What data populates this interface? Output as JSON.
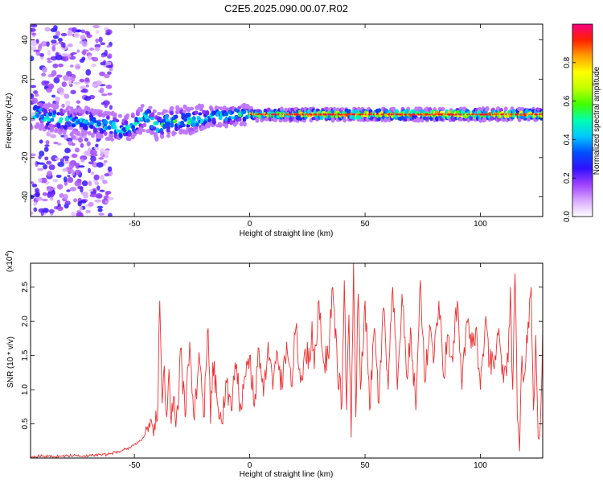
{
  "title": "C2E5.2025.090.00.07.R02",
  "chart_data": [
    {
      "type": "heatmap",
      "xlabel": "Height of straight line (km)",
      "ylabel": "Frequency (Hz)",
      "xlim": [
        -95,
        127
      ],
      "ylim": [
        -50,
        48
      ],
      "xticks": [
        -50,
        0,
        50,
        100
      ],
      "yticks": [
        -40,
        -20,
        0,
        20,
        40
      ],
      "colorbar": {
        "label": "Normalized spectral amplitude",
        "range": [
          0,
          1
        ],
        "ticks": [
          "0.0",
          "0.2",
          "0.4",
          "0.6",
          "0.8"
        ],
        "tick_values": [
          0.0,
          0.2,
          0.4,
          0.6,
          0.8
        ],
        "colors": [
          "#ffffff",
          "#d8a8ff",
          "#a040ff",
          "#3010ff",
          "#0050ff",
          "#00c8ff",
          "#00ffb0",
          "#40ff00",
          "#c0ff00",
          "#ffff00",
          "#ffa000",
          "#ff2000",
          "#ff0080"
        ]
      },
      "ridge": [
        {
          "x": -90,
          "y": 0
        },
        {
          "x": -85,
          "y": 0
        },
        {
          "x": -80,
          "y": -1
        },
        {
          "x": -75,
          "y": -2
        },
        {
          "x": -70,
          "y": -1
        },
        {
          "x": -65,
          "y": -3
        },
        {
          "x": -60,
          "y": -4
        },
        {
          "x": -55,
          "y": -6
        },
        {
          "x": -50,
          "y": -3
        },
        {
          "x": -45,
          "y": 1
        },
        {
          "x": -40,
          "y": -4
        },
        {
          "x": -35,
          "y": -2
        },
        {
          "x": -30,
          "y": -1
        },
        {
          "x": -25,
          "y": -1
        },
        {
          "x": -20,
          "y": 0
        },
        {
          "x": -15,
          "y": 1
        },
        {
          "x": -10,
          "y": 1
        },
        {
          "x": -5,
          "y": 2
        },
        {
          "x": 0,
          "y": 2
        },
        {
          "x": 10,
          "y": 2
        },
        {
          "x": 20,
          "y": 2
        },
        {
          "x": 40,
          "y": 2
        },
        {
          "x": 60,
          "y": 2
        },
        {
          "x": 80,
          "y": 2
        },
        {
          "x": 100,
          "y": 2
        },
        {
          "x": 120,
          "y": 2
        },
        {
          "x": 127,
          "y": 2
        }
      ]
    },
    {
      "type": "line",
      "xlabel": "Height of straight line (km)",
      "ylabel": "SNR (10 * v/v)",
      "yscale_note": "(x10",
      "yscale_exp": "4",
      "yscale_close": ")",
      "xlim": [
        -95,
        127
      ],
      "ylim": [
        0,
        2.85
      ],
      "xticks": [
        -50,
        0,
        50,
        100
      ],
      "yticks": [
        0.5,
        1.0,
        1.5,
        2.0,
        2.5
      ],
      "ytick_labels": [
        "0.5",
        "1.0",
        "1.5",
        "2.0",
        "2.5"
      ],
      "color": "#ee3030",
      "series": [
        {
          "x": [
            -95,
            -90,
            -85,
            -80,
            -75,
            -70,
            -65,
            -62,
            -60,
            -57,
            -55,
            -52,
            -50,
            -48,
            -46,
            -44,
            -42,
            -40,
            -39,
            -38,
            -37,
            -36,
            -35,
            -34,
            -33,
            -32,
            -31,
            -30,
            -28,
            -26,
            -24,
            -22,
            -20,
            -18,
            -17,
            -16,
            -14,
            -12,
            -10,
            -8,
            -6,
            -4,
            -2,
            0,
            2,
            4,
            6,
            8,
            10,
            12,
            14,
            16,
            18,
            20,
            22,
            24,
            26,
            27,
            28,
            30,
            32,
            34,
            36,
            38,
            40,
            41,
            42,
            43,
            44,
            45,
            46,
            47,
            48,
            50,
            52,
            54,
            56,
            58,
            60,
            62,
            64,
            66,
            68,
            70,
            72,
            74,
            76,
            78,
            80,
            82,
            84,
            86,
            88,
            90,
            92,
            94,
            96,
            98,
            100,
            102,
            104,
            106,
            108,
            110,
            112,
            113,
            114,
            115,
            116,
            117,
            118,
            119,
            120,
            121,
            122,
            123,
            124,
            125,
            126,
            127
          ],
          "y": [
            0.02,
            0.03,
            0.02,
            0.03,
            0.04,
            0.03,
            0.05,
            0.05,
            0.07,
            0.09,
            0.12,
            0.15,
            0.2,
            0.24,
            0.3,
            0.38,
            0.45,
            0.55,
            2.3,
            0.8,
            1.35,
            0.6,
            1.3,
            0.5,
            0.9,
            0.45,
            0.7,
            1.6,
            0.6,
            1.7,
            0.55,
            1.55,
            0.6,
            1.9,
            0.5,
            1.4,
            0.8,
            0.5,
            1.1,
            0.7,
            1.3,
            0.8,
            1.2,
            1.5,
            0.75,
            1.6,
            0.9,
            1.7,
            1.0,
            1.55,
            1.0,
            1.7,
            1.05,
            1.9,
            1.1,
            1.6,
            1.4,
            2.0,
            1.3,
            2.3,
            1.4,
            1.5,
            2.5,
            1.3,
            0.8,
            2.6,
            0.7,
            2.1,
            0.3,
            2.85,
            0.6,
            2.4,
            1.0,
            2.3,
            0.7,
            1.9,
            0.8,
            2.2,
            1.0,
            2.5,
            1.0,
            2.4,
            1.2,
            1.8,
            0.7,
            2.6,
            1.1,
            1.95,
            1.5,
            2.3,
            1.2,
            1.8,
            1.4,
            2.3,
            1.0,
            2.0,
            1.6,
            1.9,
            1.0,
            1.95,
            1.4,
            1.3,
            1.9,
            1.1,
            1.4,
            2.5,
            1.0,
            2.7,
            0.6,
            0.1,
            1.5,
            1.2,
            1.8,
            1.9,
            2.5,
            0.7,
            1.8,
            0.3,
            0.5,
            1.9
          ]
        }
      ]
    }
  ]
}
